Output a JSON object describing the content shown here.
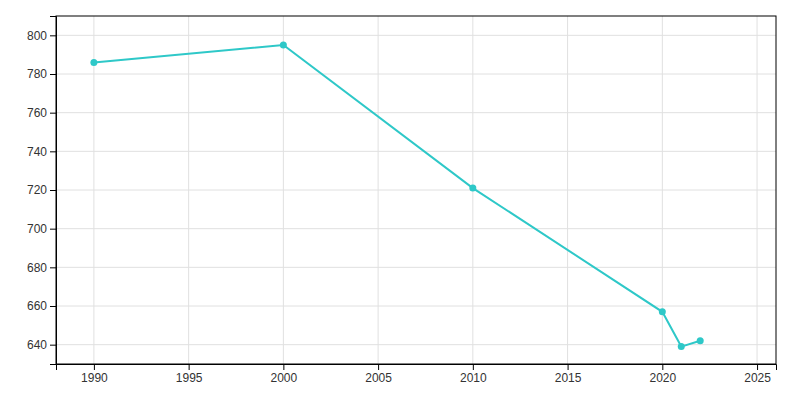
{
  "chart_data": {
    "type": "line",
    "x": [
      1990,
      2000,
      2010,
      2020,
      2021,
      2022
    ],
    "values": [
      786,
      795,
      721,
      657,
      639,
      642
    ],
    "color": "#2ec8c8",
    "marker": "circle",
    "xlim": [
      1988,
      2026
    ],
    "ylim": [
      630,
      810
    ],
    "xticks": [
      1990,
      1995,
      2000,
      2005,
      2010,
      2015,
      2020,
      2025
    ],
    "yticks": [
      640,
      660,
      680,
      700,
      720,
      740,
      760,
      780,
      800
    ],
    "grid": true
  }
}
